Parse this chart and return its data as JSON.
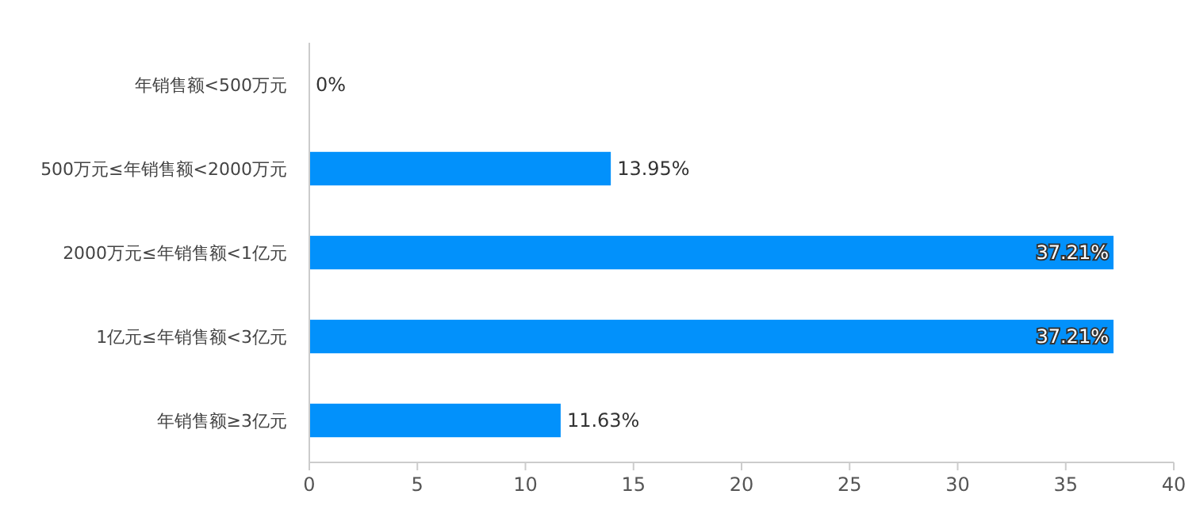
{
  "chart_data": {
    "type": "bar",
    "orientation": "horizontal",
    "categories": [
      "年销售额<500万元",
      "500万元≤年销售额<2000万元",
      "2000万元≤年销售额<1亿元",
      "1亿元≤年销售额<3亿元",
      "年销售额≥3亿元"
    ],
    "values": [
      0,
      13.95,
      37.21,
      37.21,
      11.63
    ],
    "value_labels": [
      "0%",
      "13.95%",
      "37.21%",
      "37.21%",
      "11.63%"
    ],
    "color": "#0291fb",
    "xlim": [
      0,
      40
    ],
    "xticks": [
      0,
      5,
      10,
      15,
      20,
      25,
      30,
      35,
      40
    ],
    "grid": false
  }
}
